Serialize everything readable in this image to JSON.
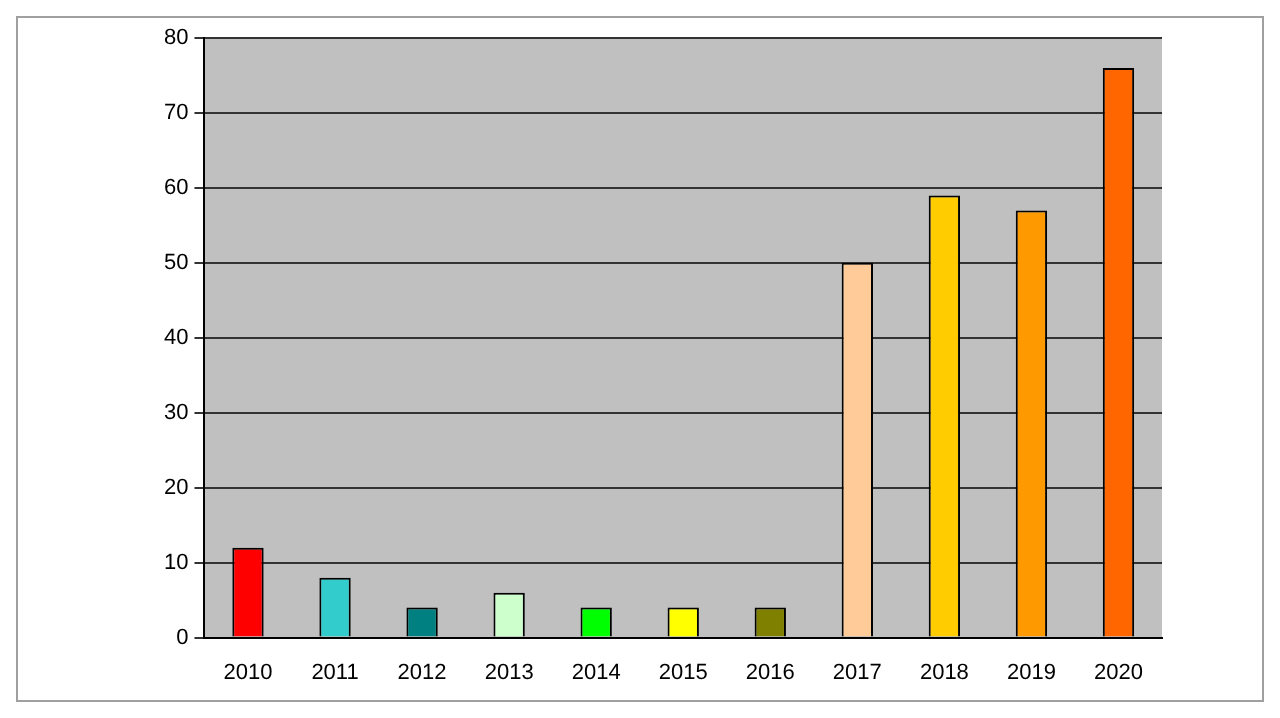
{
  "chart_data": {
    "type": "bar",
    "categories": [
      "2010",
      "2011",
      "2012",
      "2013",
      "2014",
      "2015",
      "2016",
      "2017",
      "2018",
      "2019",
      "2020"
    ],
    "values": [
      12,
      8,
      4,
      6,
      4,
      4,
      4,
      50,
      59,
      57,
      76
    ],
    "colors": [
      "#ff0000",
      "#33cccc",
      "#008080",
      "#ccffcc",
      "#00ff00",
      "#ffff00",
      "#808000",
      "#ffcc99",
      "#ffcc00",
      "#ff9900",
      "#ff6600"
    ],
    "ylim": [
      0,
      80
    ],
    "yticks": [
      0,
      10,
      20,
      30,
      40,
      50,
      60,
      70,
      80
    ],
    "grid": "y",
    "legend": false
  }
}
